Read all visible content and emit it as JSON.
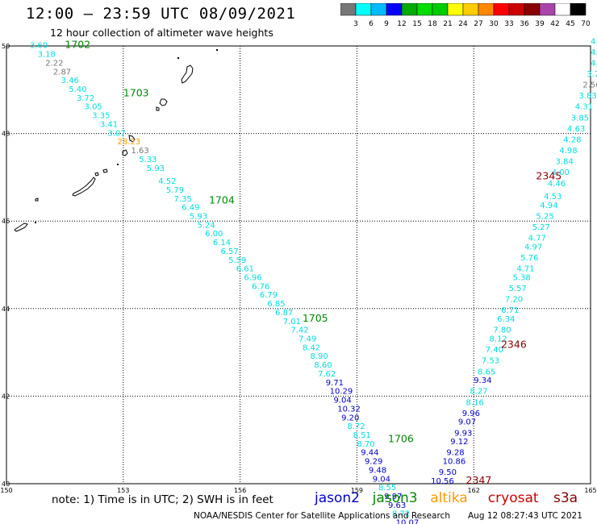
{
  "header": {
    "title": "12:00 – 23:59 UTC 08/09/2021",
    "subtitle": "12 hour collection of altimeter wave heights"
  },
  "colorbar": {
    "colors": [
      "#777777",
      "#00ffff",
      "#00bbff",
      "#0000ff",
      "#00aa00",
      "#00dd00",
      "#00cc00",
      "#ffff00",
      "#ffcc00",
      "#ff8800",
      "#ff0000",
      "#cc0000",
      "#880000",
      "#aa44aa",
      "#ffffff",
      "#000000"
    ],
    "labels": [
      "3",
      "6",
      "9",
      "12",
      "15",
      "18",
      "21",
      "24",
      "27",
      "30",
      "33",
      "36",
      "39",
      "42",
      "45",
      "70",
      "(ft)"
    ]
  },
  "footer": {
    "note": "note:  1) Time is in UTC;  2) SWH is in feet",
    "credit": "NOAA/NESDIS Center for Satellite Applications and Research",
    "timestamp": "Aug 12 08:27:43 UTC 2021",
    "satellites": [
      {
        "name": "jason2",
        "color": "#0000cc"
      },
      {
        "name": "jason3",
        "color": "#008800"
      },
      {
        "name": "altika",
        "color": "#ff9900"
      },
      {
        "name": "cryosat",
        "color": "#cc0000"
      },
      {
        "name": "s3a",
        "color": "#880000"
      }
    ]
  },
  "chart_data": {
    "type": "scatter",
    "title": "12:00 – 23:59 UTC 08/09/2021",
    "xlim": [
      150,
      165
    ],
    "ylim": [
      40,
      50
    ],
    "x_ticks": [
      "150",
      "153",
      "156",
      "159",
      "162",
      "165"
    ],
    "y_ticks": [
      "40",
      "42",
      "44",
      "46",
      "48",
      "50"
    ],
    "grid": true,
    "tracks": [
      {
        "satellite": "jason3",
        "time_labels": [
          {
            "text": "1702",
            "lon": 151.5,
            "lat": 49.95
          },
          {
            "text": "1703",
            "lon": 153.0,
            "lat": 48.85
          },
          {
            "text": "1704",
            "lon": 155.2,
            "lat": 46.4
          },
          {
            "text": "1705",
            "lon": 157.6,
            "lat": 43.7
          },
          {
            "text": "1706",
            "lon": 159.8,
            "lat": 40.95
          }
        ],
        "points": [
          {
            "lon": 150.6,
            "lat": 49.95,
            "v": "3.60"
          },
          {
            "lon": 150.8,
            "lat": 49.75,
            "v": "3.18"
          },
          {
            "lon": 151.0,
            "lat": 49.55,
            "v": "2.22"
          },
          {
            "lon": 151.2,
            "lat": 49.35,
            "v": "2.87"
          },
          {
            "lon": 151.4,
            "lat": 49.15,
            "v": "3.46"
          },
          {
            "lon": 151.6,
            "lat": 48.95,
            "v": "5.40"
          },
          {
            "lon": 151.8,
            "lat": 48.75,
            "v": "3.72"
          },
          {
            "lon": 152.0,
            "lat": 48.55,
            "v": "3.05"
          },
          {
            "lon": 152.2,
            "lat": 48.35,
            "v": "3.35"
          },
          {
            "lon": 152.4,
            "lat": 48.15,
            "v": "3.41"
          },
          {
            "lon": 152.6,
            "lat": 47.95,
            "v": "3.07"
          },
          {
            "lon": 152.85,
            "lat": 47.75,
            "v": "28.23"
          },
          {
            "lon": 153.2,
            "lat": 47.55,
            "v": "1.63"
          },
          {
            "lon": 153.4,
            "lat": 47.35,
            "v": "5.33"
          },
          {
            "lon": 153.6,
            "lat": 47.15,
            "v": "5.93"
          },
          {
            "lon": 153.9,
            "lat": 46.85,
            "v": "4.52"
          },
          {
            "lon": 154.1,
            "lat": 46.65,
            "v": "5.79"
          },
          {
            "lon": 154.3,
            "lat": 46.45,
            "v": "7.35"
          },
          {
            "lon": 154.5,
            "lat": 46.25,
            "v": "6.49"
          },
          {
            "lon": 154.7,
            "lat": 46.05,
            "v": "5.93"
          },
          {
            "lon": 154.9,
            "lat": 45.85,
            "v": "5.24"
          },
          {
            "lon": 155.1,
            "lat": 45.65,
            "v": "6.00"
          },
          {
            "lon": 155.3,
            "lat": 45.45,
            "v": "6.14"
          },
          {
            "lon": 155.5,
            "lat": 45.25,
            "v": "6.57"
          },
          {
            "lon": 155.7,
            "lat": 45.05,
            "v": "5.59"
          },
          {
            "lon": 155.9,
            "lat": 44.85,
            "v": "6.61"
          },
          {
            "lon": 156.1,
            "lat": 44.65,
            "v": "6.96"
          },
          {
            "lon": 156.3,
            "lat": 44.45,
            "v": "6.76"
          },
          {
            "lon": 156.5,
            "lat": 44.25,
            "v": "6.79"
          },
          {
            "lon": 156.7,
            "lat": 44.05,
            "v": "6.85"
          },
          {
            "lon": 156.9,
            "lat": 43.85,
            "v": "6.87"
          },
          {
            "lon": 157.1,
            "lat": 43.65,
            "v": "7.01"
          },
          {
            "lon": 157.3,
            "lat": 43.45,
            "v": "7.42"
          },
          {
            "lon": 157.5,
            "lat": 43.25,
            "v": "7.49"
          },
          {
            "lon": 157.6,
            "lat": 43.05,
            "v": "8.42"
          },
          {
            "lon": 157.8,
            "lat": 42.85,
            "v": "8.90"
          },
          {
            "lon": 157.9,
            "lat": 42.65,
            "v": "8.60"
          },
          {
            "lon": 158.0,
            "lat": 42.45,
            "v": "7.62"
          }
        ]
      },
      {
        "satellite": "jason3",
        "points": [
          {
            "lon": 158.2,
            "lat": 42.25,
            "v": "9.71"
          },
          {
            "lon": 158.3,
            "lat": 42.05,
            "v": "10.29"
          },
          {
            "lon": 158.4,
            "lat": 41.85,
            "v": "9.04"
          },
          {
            "lon": 158.5,
            "lat": 41.65,
            "v": "10.32"
          },
          {
            "lon": 158.6,
            "lat": 41.45,
            "v": "9.20"
          },
          {
            "lon": 158.75,
            "lat": 41.25,
            "v": "8.72"
          },
          {
            "lon": 158.9,
            "lat": 41.05,
            "v": "8.51"
          },
          {
            "lon": 159.0,
            "lat": 40.85,
            "v": "8.70"
          },
          {
            "lon": 159.1,
            "lat": 40.65,
            "v": "9.44"
          },
          {
            "lon": 159.2,
            "lat": 40.45,
            "v": "9.29"
          },
          {
            "lon": 159.3,
            "lat": 40.25,
            "v": "9.48"
          },
          {
            "lon": 159.4,
            "lat": 40.05,
            "v": "9.04"
          },
          {
            "lon": 159.55,
            "lat": 39.85,
            "v": "8.55"
          },
          {
            "lon": 159.7,
            "lat": 39.65,
            "v": "9.97"
          },
          {
            "lon": 159.8,
            "lat": 39.45,
            "v": "9.63"
          },
          {
            "lon": 159.9,
            "lat": 39.25,
            "v": "8.72"
          },
          {
            "lon": 160.0,
            "lat": 39.05,
            "v": "10.07"
          },
          {
            "lon": 160.1,
            "lat": 38.85,
            "v": "8.91"
          }
        ]
      },
      {
        "satellite": "s3a",
        "time_labels": [
          {
            "text": "2345",
            "lon": 163.6,
            "lat": 46.95
          },
          {
            "text": "2346",
            "lon": 162.7,
            "lat": 43.1
          },
          {
            "text": "2347",
            "lon": 161.8,
            "lat": 40.0
          }
        ],
        "points": [
          {
            "lon": 160.9,
            "lat": 40.0,
            "v": "10.56"
          },
          {
            "lon": 161.1,
            "lat": 40.2,
            "v": "9.50"
          },
          {
            "lon": 161.2,
            "lat": 40.45,
            "v": "10.86"
          },
          {
            "lon": 161.3,
            "lat": 40.65,
            "v": "9.28"
          },
          {
            "lon": 161.4,
            "lat": 40.9,
            "v": "9.12"
          },
          {
            "lon": 161.5,
            "lat": 41.1,
            "v": "9.93"
          },
          {
            "lon": 161.6,
            "lat": 41.35,
            "v": "9.07"
          },
          {
            "lon": 161.7,
            "lat": 41.55,
            "v": "9.96"
          },
          {
            "lon": 161.8,
            "lat": 41.8,
            "v": "8.16"
          },
          {
            "lon": 161.9,
            "lat": 42.05,
            "v": "8.27"
          },
          {
            "lon": 162.0,
            "lat": 42.3,
            "v": "9.34"
          },
          {
            "lon": 162.1,
            "lat": 42.5,
            "v": "8.65"
          },
          {
            "lon": 162.2,
            "lat": 42.75,
            "v": "7.53"
          },
          {
            "lon": 162.3,
            "lat": 43.0,
            "v": "7.40"
          },
          {
            "lon": 162.4,
            "lat": 43.25,
            "v": "8.12"
          },
          {
            "lon": 162.5,
            "lat": 43.45,
            "v": "7.80"
          },
          {
            "lon": 162.6,
            "lat": 43.7,
            "v": "6.34"
          },
          {
            "lon": 162.7,
            "lat": 43.9,
            "v": "6.71"
          },
          {
            "lon": 162.8,
            "lat": 44.15,
            "v": "7.20"
          },
          {
            "lon": 162.9,
            "lat": 44.4,
            "v": "5.57"
          },
          {
            "lon": 163.0,
            "lat": 44.65,
            "v": "5.38"
          },
          {
            "lon": 163.1,
            "lat": 44.85,
            "v": "4.71"
          },
          {
            "lon": 163.2,
            "lat": 45.1,
            "v": "5.76"
          },
          {
            "lon": 163.3,
            "lat": 45.35,
            "v": "4.97"
          },
          {
            "lon": 163.4,
            "lat": 45.55,
            "v": "4.77"
          },
          {
            "lon": 163.5,
            "lat": 45.8,
            "v": "5.27"
          },
          {
            "lon": 163.6,
            "lat": 46.05,
            "v": "5.25"
          },
          {
            "lon": 163.7,
            "lat": 46.3,
            "v": "4.94"
          },
          {
            "lon": 163.8,
            "lat": 46.5,
            "v": "4.53"
          },
          {
            "lon": 163.9,
            "lat": 46.8,
            "v": "4.46"
          },
          {
            "lon": 164.0,
            "lat": 47.05,
            "v": "4.00"
          },
          {
            "lon": 164.1,
            "lat": 47.3,
            "v": "3.84"
          },
          {
            "lon": 164.2,
            "lat": 47.55,
            "v": "4.98"
          },
          {
            "lon": 164.3,
            "lat": 47.8,
            "v": "4.28"
          },
          {
            "lon": 164.4,
            "lat": 48.05,
            "v": "4.63"
          },
          {
            "lon": 164.5,
            "lat": 48.3,
            "v": "3.85"
          },
          {
            "lon": 164.6,
            "lat": 48.55,
            "v": "4.31"
          },
          {
            "lon": 164.7,
            "lat": 48.8,
            "v": "3.83"
          },
          {
            "lon": 164.8,
            "lat": 49.05,
            "v": "2.56"
          },
          {
            "lon": 164.9,
            "lat": 49.3,
            "v": "3.76"
          },
          {
            "lon": 165.0,
            "lat": 49.55,
            "v": "4.85"
          },
          {
            "lon": 165.0,
            "lat": 49.8,
            "v": "4.60"
          },
          {
            "lon": 165.0,
            "lat": 50.05,
            "v": "4.66"
          }
        ]
      }
    ]
  }
}
